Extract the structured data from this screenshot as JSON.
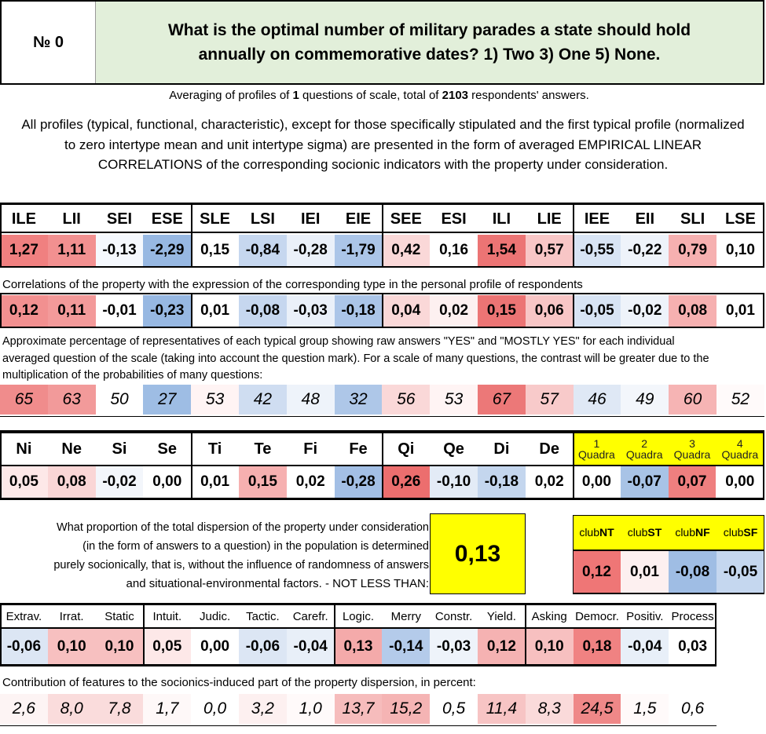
{
  "header": {
    "number_label": "№ 0",
    "question": "What is the optimal number of military parades a state should hold annually on commemorative dates? 1) Two 3) One 5) None."
  },
  "averaging": {
    "prefix": "Averaging of profiles of ",
    "count": "1",
    "middle": " questions of scale, total of ",
    "respondents": "2103",
    "suffix": " respondents' answers."
  },
  "intro": "All profiles (typical, functional, characteristic), except for those specifically stipulated and the first typical profile (normalized to zero intertype mean and unit intertype sigma) are presented in the form of averaged EMPIRICAL LINEAR CORRELATIONS of the corresponding socionic indicators with the property under consideration.",
  "types": {
    "labels": [
      "ILE",
      "LII",
      "SEI",
      "ESE",
      "SLE",
      "LSI",
      "IEI",
      "EIE",
      "SEE",
      "ESI",
      "ILI",
      "LIE",
      "IEE",
      "EII",
      "SLI",
      "LSE"
    ],
    "values": [
      "1,27",
      "1,11",
      "-0,13",
      "-2,29",
      "0,15",
      "-0,84",
      "-0,28",
      "-1,79",
      "0,42",
      "0,16",
      "1,54",
      "0,57",
      "-0,55",
      "-0,22",
      "0,79",
      "0,10"
    ],
    "colors": [
      "#f08080",
      "#f29090",
      "#f5f8fd",
      "#97b8e2",
      "#ffffff",
      "#c6d7ef",
      "#eaf0f9",
      "#abc5e8",
      "#fad8d8",
      "#ffffff",
      "#ec7474",
      "#f8c6c6",
      "#d8e4f4",
      "#eef3fa",
      "#f6b0b0",
      "#ffffff"
    ],
    "corr_caption": "Correlations of the property with the expression of the corresponding type in the personal profile of respondents",
    "corr": [
      "0,12",
      "0,11",
      "-0,01",
      "-0,23",
      "0,01",
      "-0,08",
      "-0,03",
      "-0,18",
      "0,04",
      "0,02",
      "0,15",
      "0,06",
      "-0,05",
      "-0,02",
      "0,08",
      "0,01"
    ],
    "corr_colors": [
      "#f29090",
      "#f39a9a",
      "#ffffff",
      "#97b8e2",
      "#ffffff",
      "#c6d7ef",
      "#eaf0f9",
      "#abc5e8",
      "#fad8d8",
      "#fdf0f0",
      "#ec7474",
      "#f8c6c6",
      "#d8e4f4",
      "#eef3fa",
      "#f6b0b0",
      "#ffffff"
    ],
    "pct_caption": "Approximate percentage of representatives of each typical group showing raw answers \"YES\" and \"MOSTLY YES\" for each individual averaged question of the scale (taking into account the question mark). For a scale of many questions, the contrast will be greater due to the multiplication of the probabilities of many questions:",
    "pct": [
      "65",
      "63",
      "50",
      "27",
      "53",
      "42",
      "48",
      "32",
      "56",
      "53",
      "67",
      "57",
      "46",
      "49",
      "60",
      "52"
    ],
    "pct_colors": [
      "#f08c8c",
      "#f29a9a",
      "#ffffff",
      "#9ebde4",
      "#fff4f4",
      "#cfddf1",
      "#eef3fa",
      "#aec7e8",
      "#fad8d8",
      "#fff4f4",
      "#ec7878",
      "#f8caca",
      "#dfe8f5",
      "#f3f6fb",
      "#f6b4b4",
      "#fffafa"
    ]
  },
  "functions": {
    "labels": [
      "Ni",
      "Ne",
      "Si",
      "Se",
      "Ti",
      "Te",
      "Fi",
      "Fe",
      "Qi",
      "Qe",
      "Di",
      "De"
    ],
    "values": [
      "0,05",
      "0,08",
      "-0,02",
      "0,00",
      "0,01",
      "0,15",
      "0,02",
      "-0,28",
      "0,26",
      "-0,10",
      "-0,18",
      "0,02"
    ],
    "colors": [
      "#fde8e8",
      "#fad6d6",
      "#f3f6fb",
      "#ffffff",
      "#ffffff",
      "#f6b0b0",
      "#ffffff",
      "#a3bfe5",
      "#ec6e6e",
      "#e3ebf6",
      "#c4d6ee",
      "#ffffff"
    ]
  },
  "quadras": {
    "labels": [
      [
        "1",
        "Quadra"
      ],
      [
        "2",
        "Quadra"
      ],
      [
        "3",
        "Quadra"
      ],
      [
        "4",
        "Quadra"
      ]
    ],
    "values": [
      "0,00",
      "-0,07",
      "0,07",
      "0,00"
    ],
    "colors": [
      "#ffffff",
      "#a8c3e6",
      "#ef7f7f",
      "#ffffff"
    ],
    "header_color": "#ffff00"
  },
  "dispersion": {
    "text": [
      "What proportion of the total dispersion of the property under consideration",
      "(in the form of answers to a question) in the population is determined",
      "purely socionically, that is, without the influence of randomness of answers",
      "and situational-environmental factors. - NOT LESS THAN:"
    ],
    "value": "0,13"
  },
  "clubs": {
    "labels": [
      [
        "club",
        "NT"
      ],
      [
        "club",
        "ST"
      ],
      [
        "club",
        "NF"
      ],
      [
        "club",
        "SF"
      ]
    ],
    "values": [
      "0,12",
      "0,01",
      "-0,08",
      "-0,05"
    ],
    "colors": [
      "#ef7676",
      "#fdf0f0",
      "#9fbde4",
      "#c5d7ef"
    ]
  },
  "traits": {
    "labels": [
      "Extrav.",
      "Irrat.",
      "Static",
      "Intuit.",
      "Judic.",
      "Tactic.",
      "Carefr.",
      "Logic.",
      "Merry",
      "Constr.",
      "Yield.",
      "Asking",
      "Democr.",
      "Positiv.",
      "Process"
    ],
    "values": [
      "-0,06",
      "0,10",
      "0,10",
      "0,05",
      "0,00",
      "-0,06",
      "-0,04",
      "0,13",
      "-0,14",
      "-0,03",
      "0,12",
      "0,10",
      "0,18",
      "-0,04",
      "0,03"
    ],
    "colors": [
      "#dce6f4",
      "#f7c0c0",
      "#f7c0c0",
      "#fde8e8",
      "#ffffff",
      "#dce6f4",
      "#e8eff8",
      "#f4aaaa",
      "#b4cbea",
      "#eef3fa",
      "#f5b2b2",
      "#f7c0c0",
      "#f08282",
      "#e8eff8",
      "#ffffff"
    ],
    "contrib_caption": "Contribution of features to the sociоnics-induced part of the property dispersion, in percent:",
    "contrib": [
      "2,6",
      "8,0",
      "7,8",
      "1,7",
      "0,0",
      "3,2",
      "1,0",
      "13,7",
      "15,2",
      "0,5",
      "11,4",
      "8,3",
      "24,5",
      "1,5",
      "0,6"
    ],
    "contrib_colors": [
      "#fdf4f4",
      "#fadcdc",
      "#fadcdc",
      "#fef8f8",
      "#ffffff",
      "#fdf0f0",
      "#fffafa",
      "#f6bcbc",
      "#f5b4b4",
      "#ffffff",
      "#f7c4c4",
      "#fadada",
      "#ef8888",
      "#fffafa",
      "#ffffff"
    ]
  }
}
